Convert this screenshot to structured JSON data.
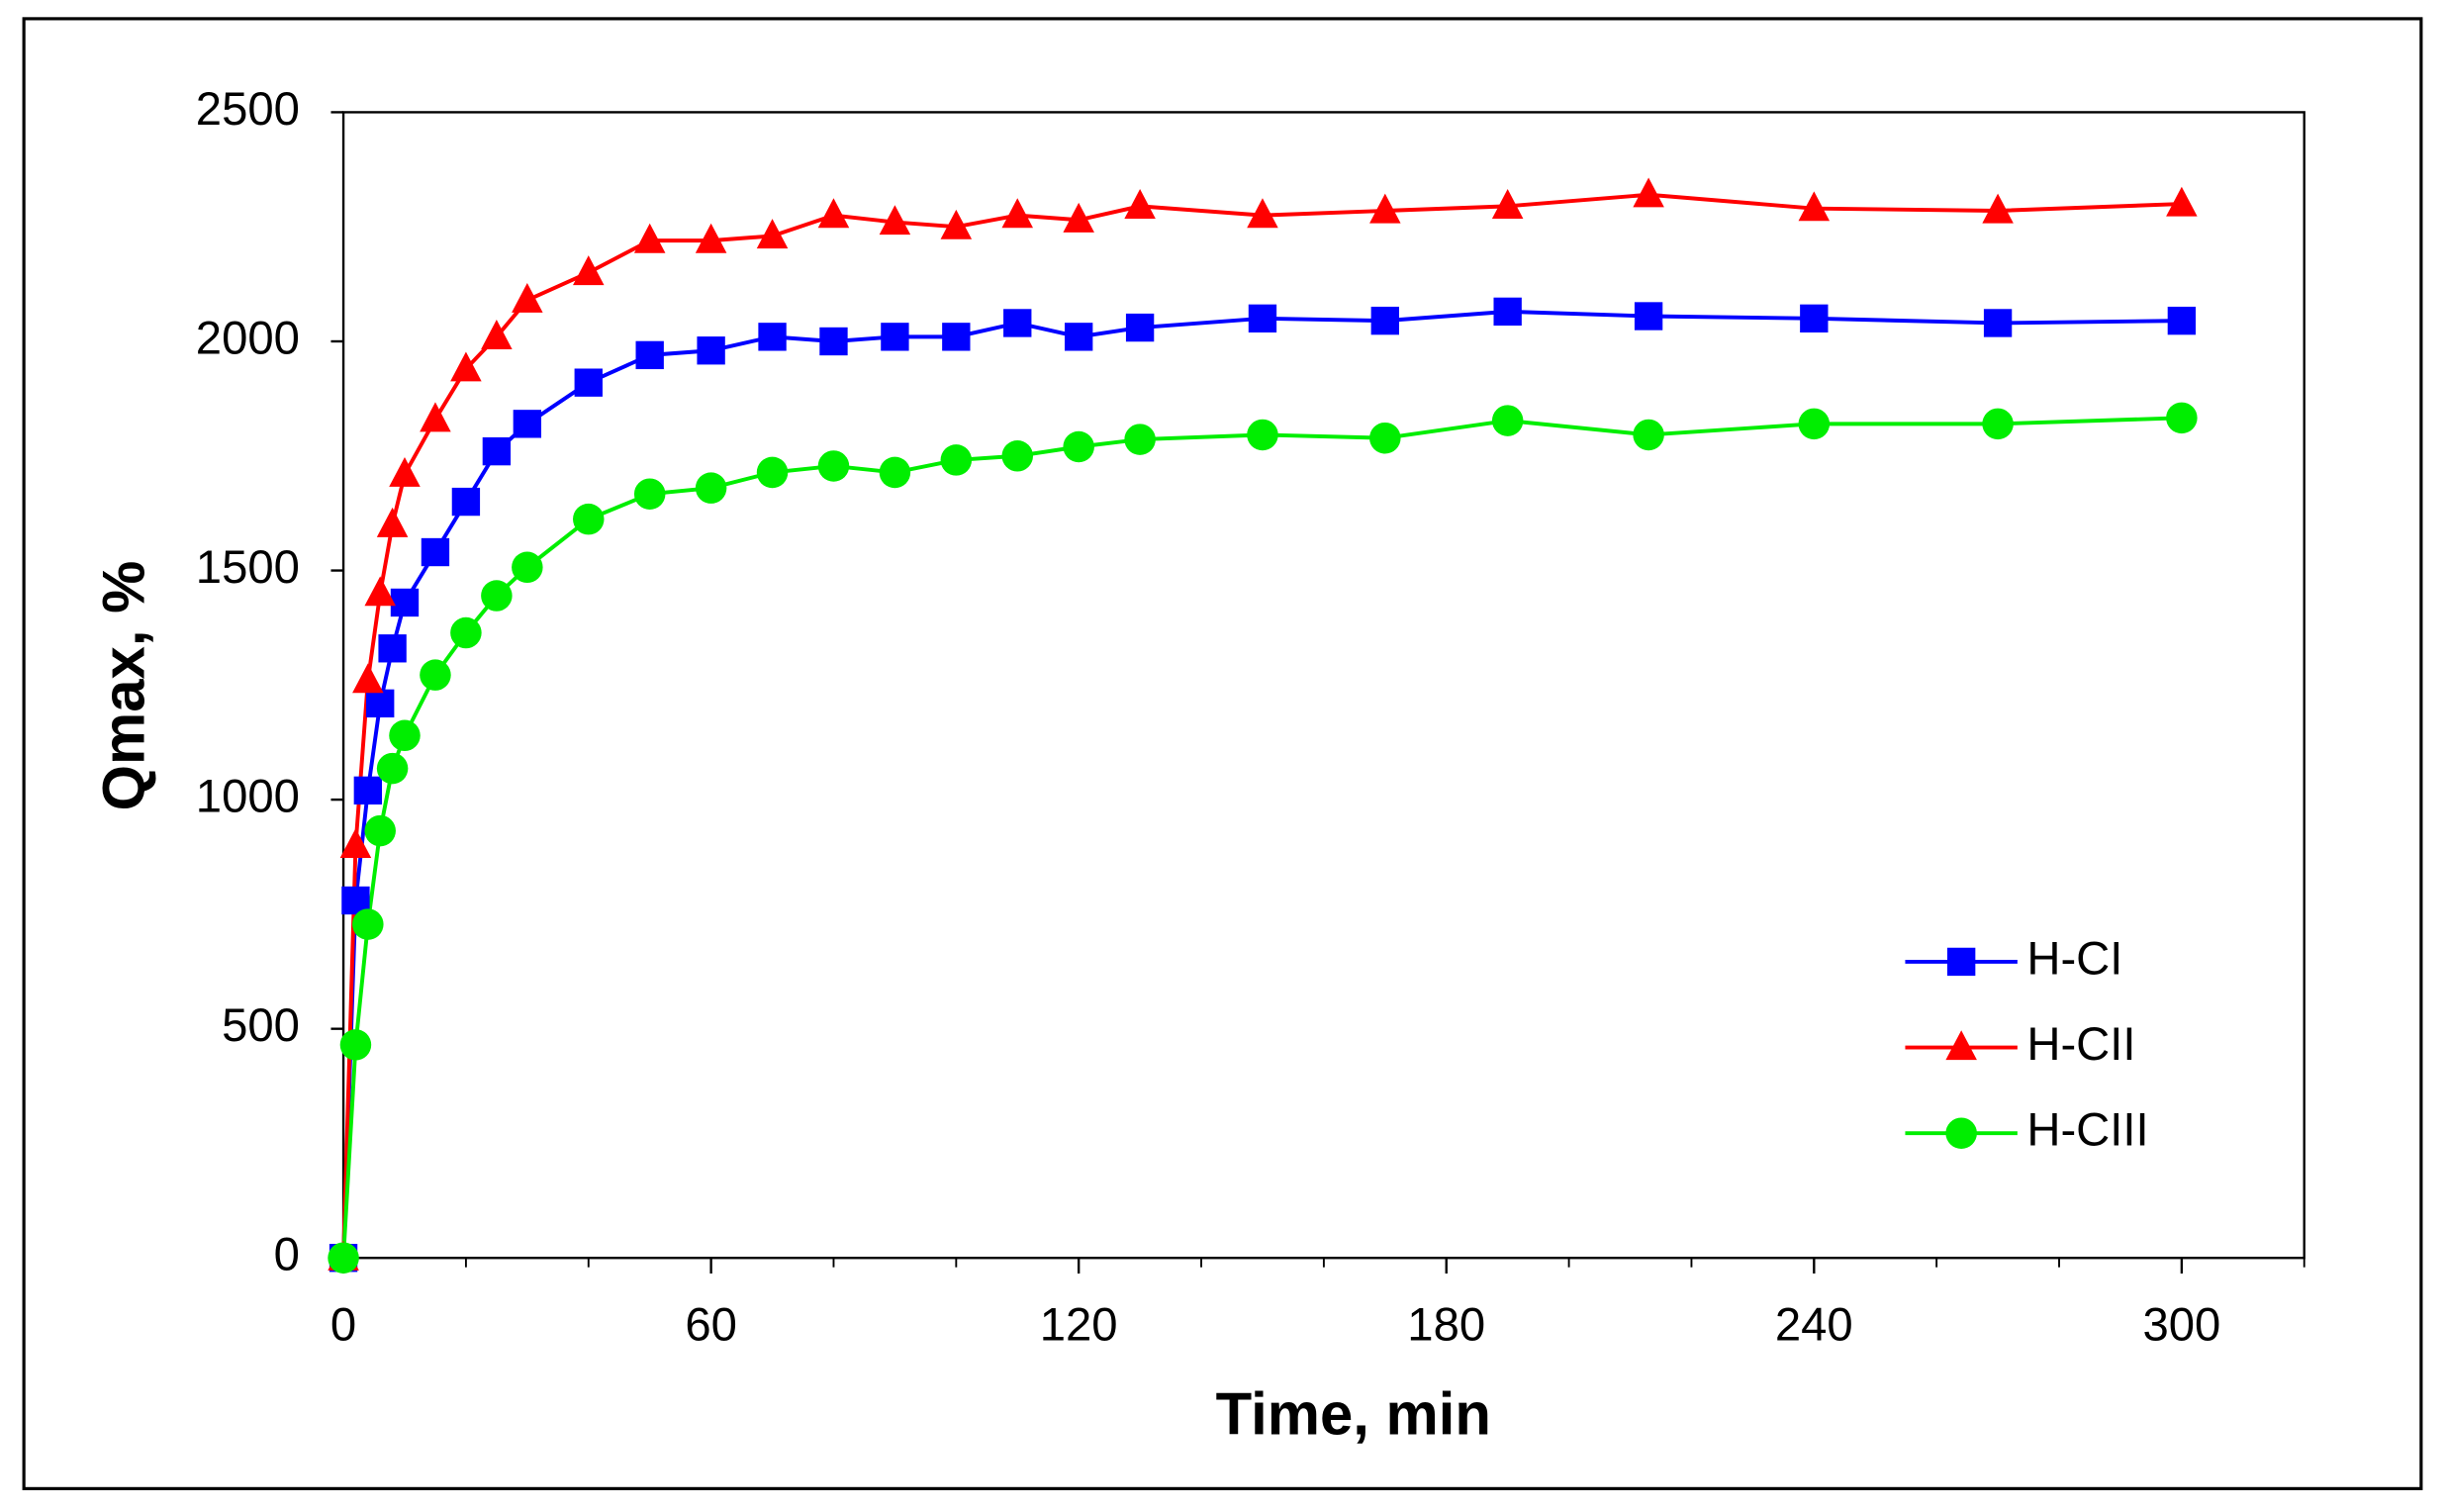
{
  "chart_data": {
    "type": "line",
    "x_label": "Time, min",
    "y_label": "Qmax, %",
    "x": [
      0,
      2,
      4,
      6,
      8,
      10,
      15,
      20,
      25,
      30,
      40,
      50,
      60,
      70,
      80,
      90,
      100,
      110,
      120,
      130,
      150,
      170,
      190,
      213,
      240,
      270,
      300
    ],
    "series": [
      {
        "name": "H-CI",
        "color": "#0000ff",
        "marker": "square",
        "values": [
          0,
          780,
          1020,
          1210,
          1330,
          1430,
          1540,
          1650,
          1760,
          1820,
          1910,
          1970,
          1980,
          2010,
          2000,
          2010,
          2010,
          2040,
          2010,
          2030,
          2050,
          2045,
          2065,
          2055,
          2050,
          2040,
          2045
        ]
      },
      {
        "name": "H-CII",
        "color": "#ff0000",
        "marker": "triangle",
        "values": [
          0,
          900,
          1260,
          1450,
          1600,
          1710,
          1830,
          1940,
          2010,
          2090,
          2150,
          2220,
          2220,
          2230,
          2275,
          2260,
          2250,
          2275,
          2265,
          2295,
          2275,
          2285,
          2295,
          2320,
          2290,
          2285,
          2300
        ]
      },
      {
        "name": "H-CIII",
        "color": "#00ee00",
        "marker": "circle",
        "values": [
          0,
          465,
          728,
          932,
          1068,
          1140,
          1272,
          1364,
          1445,
          1507,
          1612,
          1667,
          1680,
          1714,
          1728,
          1714,
          1741,
          1750,
          1770,
          1786,
          1796,
          1789,
          1827,
          1796,
          1820,
          1820,
          1833
        ]
      }
    ],
    "xlim": [
      0,
      320
    ],
    "xticks": [
      0,
      60,
      120,
      180,
      240,
      300
    ],
    "xminorticks": [
      20,
      40,
      80,
      100,
      140,
      160,
      200,
      220,
      260,
      280,
      320
    ],
    "ylim": [
      0,
      2500
    ],
    "yticks": [
      0,
      500,
      1000,
      1500,
      2000,
      2500
    ],
    "legend": "right"
  }
}
